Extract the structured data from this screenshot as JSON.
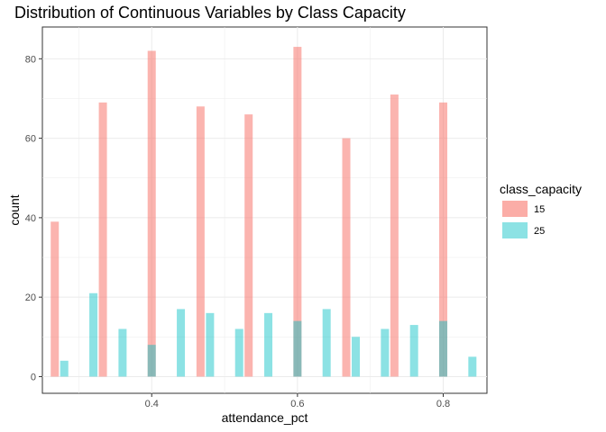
{
  "chart_data": {
    "type": "bar",
    "title": "Distribution of Continuous Variables by Class Capacity",
    "xlabel": "attendance_pct",
    "ylabel": "count",
    "xlim": [
      0.25,
      0.86
    ],
    "ylim": [
      -4.2,
      88
    ],
    "xticks": [
      0.4,
      0.6,
      0.8
    ],
    "xtick_labels": [
      "0.4",
      "0.6",
      "0.8"
    ],
    "yticks": [
      0,
      20,
      40,
      60,
      80
    ],
    "ytick_labels": [
      "0",
      "20",
      "40",
      "60",
      "80"
    ],
    "grid": true,
    "legend": {
      "title": "class_capacity",
      "placement": "right"
    },
    "series": [
      {
        "name": "15",
        "color": "#F8766D",
        "x": [
          0.267,
          0.333,
          0.4,
          0.467,
          0.533,
          0.6,
          0.667,
          0.733,
          0.8
        ],
        "values": [
          39,
          69,
          82,
          68,
          66,
          83,
          60,
          71,
          69
        ]
      },
      {
        "name": "25",
        "color": "#00BFC4",
        "x": [
          0.28,
          0.32,
          0.36,
          0.4,
          0.44,
          0.48,
          0.52,
          0.56,
          0.6,
          0.64,
          0.68,
          0.72,
          0.76,
          0.8,
          0.84
        ],
        "values": [
          4,
          21,
          12,
          8,
          17,
          16,
          12,
          16,
          14,
          17,
          10,
          12,
          13,
          14,
          5
        ]
      }
    ]
  }
}
